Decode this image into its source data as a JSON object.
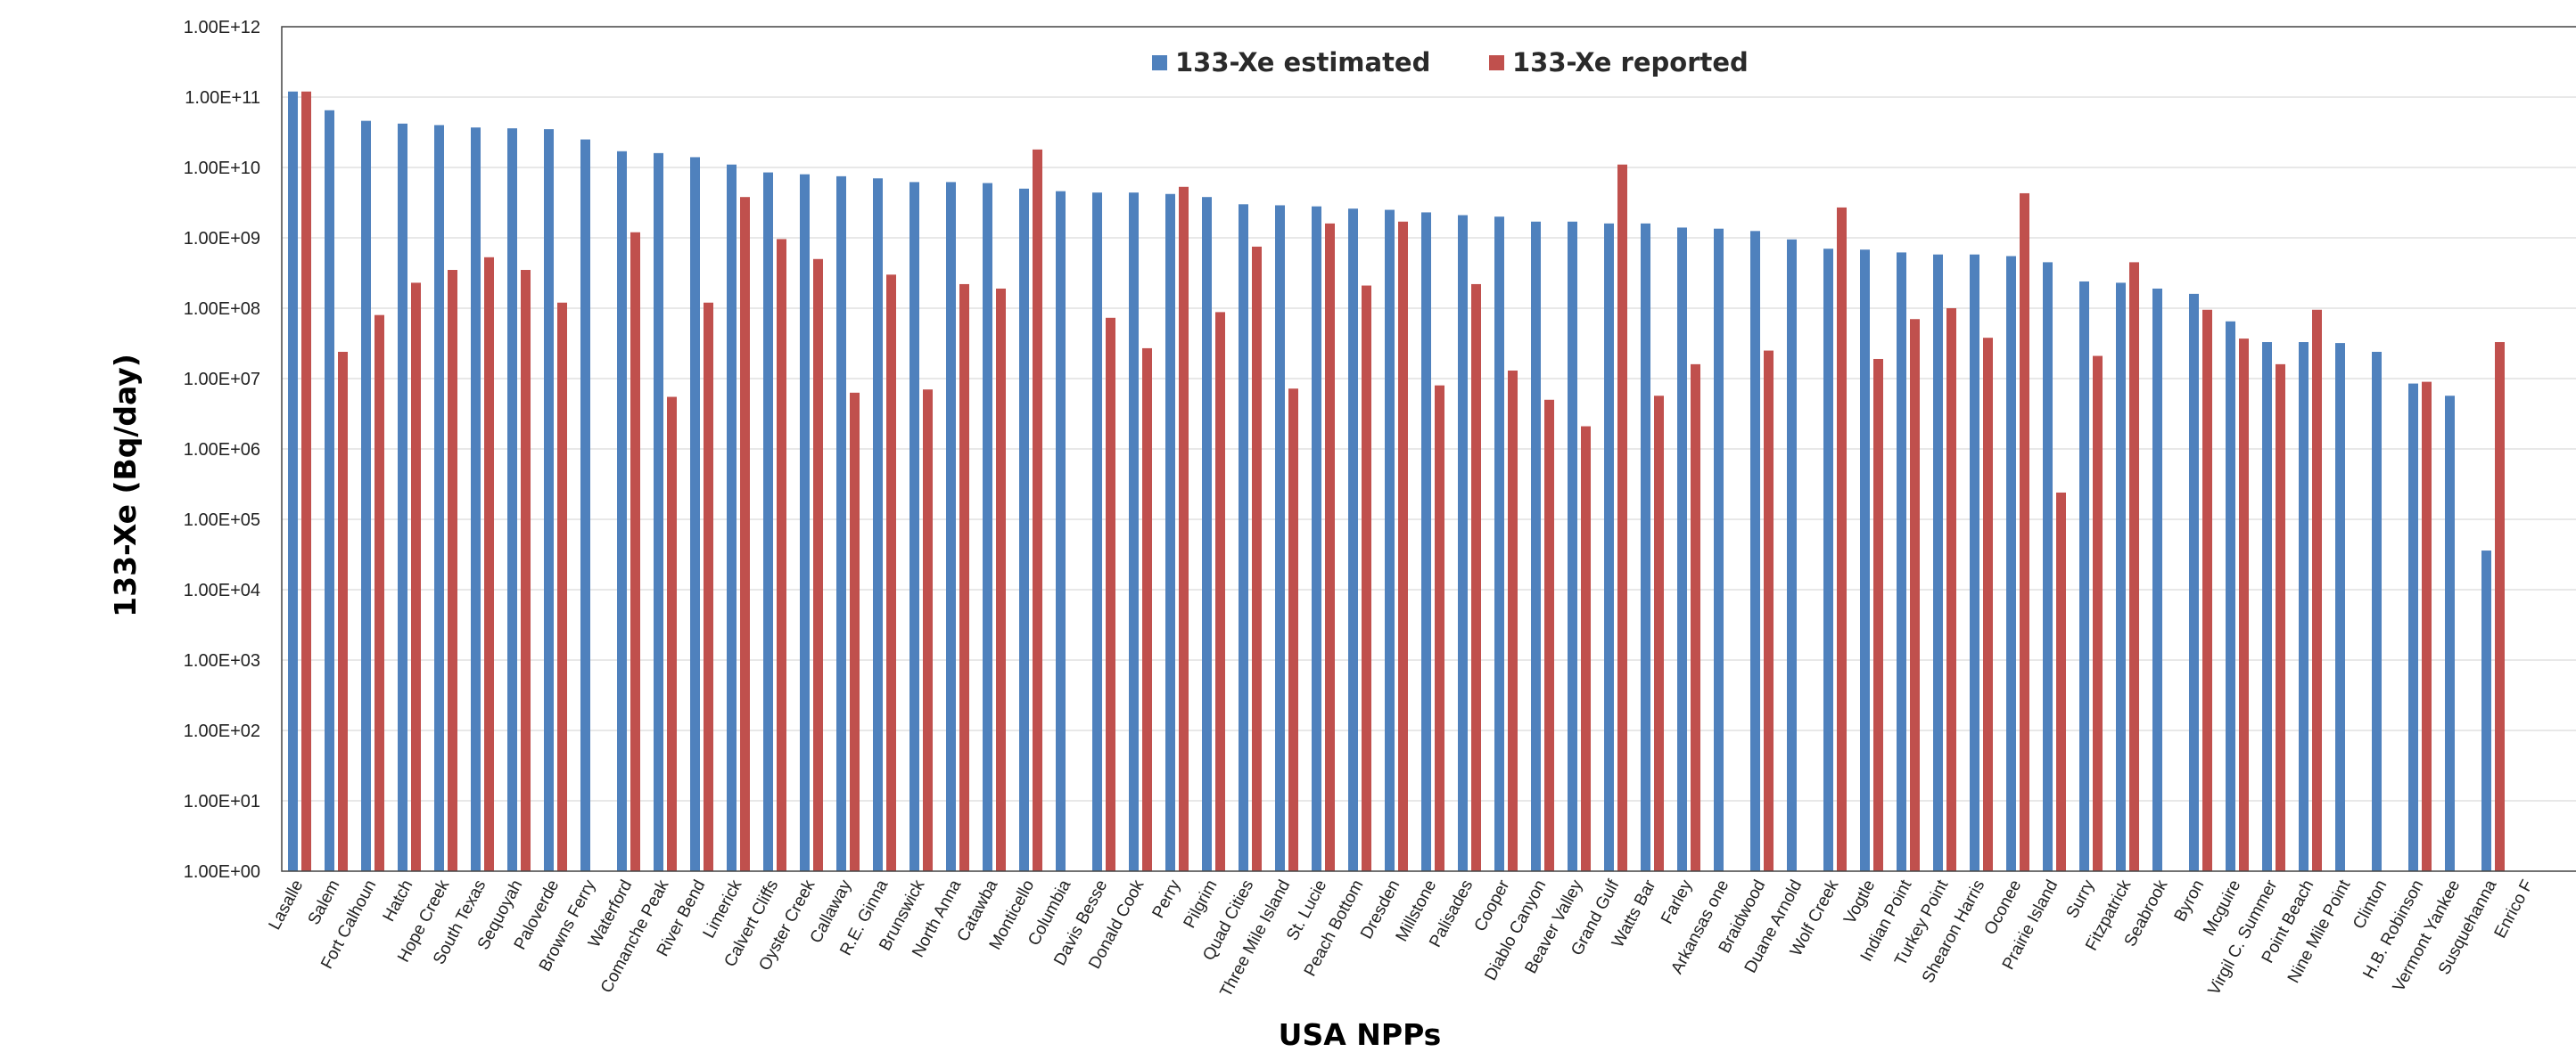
{
  "chart_data": {
    "type": "bar",
    "title": "",
    "xlabel": "USA NPPs",
    "ylabel": "133-Xe (Bq/day)",
    "yscale": "log",
    "ylim": [
      1,
      1000000000000.0
    ],
    "grid": true,
    "legend_position": "top-center",
    "yticks": [
      "1.00E+00",
      "1.00E+01",
      "1.00E+02",
      "1.00E+03",
      "1.00E+04",
      "1.00E+05",
      "1.00E+06",
      "1.00E+07",
      "1.00E+08",
      "1.00E+09",
      "1.00E+10",
      "1.00E+11",
      "1.00E+12"
    ],
    "categories": [
      "Lasalle",
      "Salem",
      "Fort Calhoun",
      "Hatch",
      "Hope Creek",
      "South Texas",
      "Sequoyah",
      "Paloverde",
      "Browns Ferry",
      "Waterford",
      "Comanche Peak",
      "River Bend",
      "Limerick",
      "Calvert Cliffs",
      "Oyster Creek",
      "Callaway",
      "R.E. Ginna",
      "Brunswick",
      "North Anna",
      "Catawba",
      "Monticello",
      "Columbia",
      "Davis Besse",
      "Donald Cook",
      "Perry",
      "Pilgrim",
      "Quad Cities",
      "Three Mile Island",
      "St. Lucie",
      "Peach Bottom",
      "Dresden",
      "Millstone",
      "Palisades",
      "Cooper",
      "Diablo Canyon",
      "Beaver Valley",
      "Grand Gulf",
      "Watts Bar",
      "Farley",
      "Arkansas one",
      "Braidwood",
      "Duane Arnold",
      "Wolf Creek",
      "Vogtle",
      "Indian Point",
      "Turkey Point",
      "Shearon Harris",
      "Oconee",
      "Prairie Island",
      "Surry",
      "Fitzpatrick",
      "Seabrook",
      "Byron",
      "Mcguire",
      "Virgil C. Summer",
      "Point Beach",
      "Nine Mile Point",
      "Clinton",
      "H.B. Robinson",
      "Vermont Yankee",
      "Susquehanna",
      "Enrico F"
    ],
    "series": [
      {
        "name": "133-Xe estimated",
        "color": "#4F81BD",
        "values": [
          120000000000.0,
          65000000000.0,
          46000000000.0,
          42000000000.0,
          40000000000.0,
          37000000000.0,
          36000000000.0,
          35000000000.0,
          25000000000.0,
          17000000000.0,
          16000000000.0,
          14000000000.0,
          11000000000.0,
          8500000000.0,
          8000000000.0,
          7500000000.0,
          7000000000.0,
          6200000000.0,
          6200000000.0,
          6000000000.0,
          5000000000.0,
          4600000000.0,
          4400000000.0,
          4400000000.0,
          4200000000.0,
          3800000000.0,
          3000000000.0,
          2900000000.0,
          2800000000.0,
          2600000000.0,
          2500000000.0,
          2300000000.0,
          2100000000.0,
          2000000000.0,
          1700000000.0,
          1700000000.0,
          1600000000.0,
          1600000000.0,
          1400000000.0,
          1350000000.0,
          1250000000.0,
          950000000.0,
          700000000.0,
          680000000.0,
          620000000.0,
          580000000.0,
          580000000.0,
          550000000.0,
          450000000.0,
          240000000.0,
          230000000.0,
          190000000.0,
          160000000.0,
          65000000.0,
          33000000.0,
          33000000.0,
          32000000.0,
          24000000.0,
          8500000.0,
          5700000.0,
          36000.0,
          null
        ]
      },
      {
        "name": "133-Xe reported",
        "color": "#C0504D",
        "values": [
          120000000000.0,
          24000000.0,
          80000000.0,
          230000000.0,
          350000000.0,
          530000000.0,
          350000000.0,
          120000000.0,
          null,
          1200000000.0,
          5500000.0,
          120000000.0,
          3800000000.0,
          960000000.0,
          500000000.0,
          6300000.0,
          300000000.0,
          7000000.0,
          220000000.0,
          190000000.0,
          18000000000.0,
          null,
          73000000.0,
          27000000.0,
          5300000000.0,
          88000000.0,
          750000000.0,
          7200000.0,
          1600000000.0,
          210000000.0,
          1700000000.0,
          8000000.0,
          220000000.0,
          13000000.0,
          5000000.0,
          2100000.0,
          11000000000.0,
          5700000.0,
          16000000.0,
          null,
          25000000.0,
          null,
          2700000000.0,
          19000000.0,
          70000000.0,
          100000000.0,
          38000000.0,
          4300000000.0,
          240000.0,
          21000000.0,
          450000000.0,
          null,
          95000000.0,
          37000000.0,
          16000000.0,
          95000000.0,
          null,
          null,
          9000000.0,
          null,
          33000000.0,
          null
        ]
      }
    ]
  }
}
